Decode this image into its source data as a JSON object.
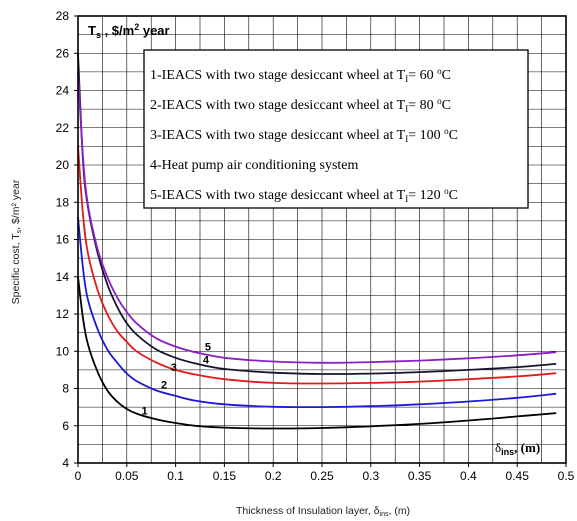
{
  "chart_data": {
    "type": "line",
    "xlabel": "Thickness of Insulation layer, δ",
    "xlabel_sub": "ins",
    "xlabel_unit": ", (m)",
    "ylabel": "Specific cost, T",
    "ylabel_sub": "s",
    "ylabel_unit": ", $/m² year",
    "corner_y_label": "T",
    "corner_y_sub": "s",
    "corner_y_unit": " , $/m",
    "corner_y_sup": "2",
    "corner_y_tail": " year",
    "corner_x_label": "δ",
    "corner_x_sub": "ins",
    "corner_x_unit": ", (m)",
    "xlim": [
      0,
      0.5
    ],
    "ylim": [
      4,
      28
    ],
    "x_ticks": [
      "0",
      "0.05",
      "0.1",
      "0.15",
      "0.2",
      "0.25",
      "0.3",
      "0.35",
      "0.4",
      "0.45",
      "0.5"
    ],
    "y_ticks": [
      "4",
      "6",
      "8",
      "10",
      "12",
      "14",
      "16",
      "18",
      "20",
      "22",
      "24",
      "26",
      "28"
    ],
    "grid": true,
    "legend_position": "top-right",
    "legend": [
      {
        "pre": "1-IEACS with two stage desiccant wheel at T",
        "sub": "I",
        "post": "= 60 ",
        "sup": "o",
        "tail": "C"
      },
      {
        "pre": "2-IEACS with two stage desiccant wheel at T",
        "sub": "I",
        "post": "= 80 ",
        "sup": "o",
        "tail": "C"
      },
      {
        "pre": "3-IEACS with two stage desiccant wheel at T",
        "sub": "I",
        "post": "= 100 ",
        "sup": "o",
        "tail": "C"
      },
      {
        "pre": "4-Heat pump air conditioning system",
        "sub": "",
        "post": "",
        "sup": "",
        "tail": ""
      },
      {
        "pre": "5-IEACS with two stage desiccant wheel at T",
        "sub": "I",
        "post": "= 120 ",
        "sup": "o",
        "tail": "C"
      }
    ],
    "series": [
      {
        "label": "1",
        "color": "#000000",
        "label_at": [
          0.065,
          6.6
        ],
        "points": [
          [
            0,
            14.0
          ],
          [
            0.005,
            11.8
          ],
          [
            0.01,
            10.4
          ],
          [
            0.02,
            8.9
          ],
          [
            0.03,
            7.9
          ],
          [
            0.04,
            7.3
          ],
          [
            0.05,
            6.9
          ],
          [
            0.06,
            6.65
          ],
          [
            0.08,
            6.35
          ],
          [
            0.1,
            6.15
          ],
          [
            0.12,
            6.0
          ],
          [
            0.15,
            5.9
          ],
          [
            0.2,
            5.85
          ],
          [
            0.25,
            5.88
          ],
          [
            0.3,
            5.97
          ],
          [
            0.35,
            6.1
          ],
          [
            0.4,
            6.28
          ],
          [
            0.45,
            6.5
          ],
          [
            0.49,
            6.68
          ]
        ]
      },
      {
        "label": "2",
        "color": "#1a1ad6",
        "label_at": [
          0.085,
          8.0
        ],
        "points": [
          [
            0,
            17.2
          ],
          [
            0.005,
            14.5
          ],
          [
            0.01,
            12.8
          ],
          [
            0.02,
            11.2
          ],
          [
            0.03,
            10.1
          ],
          [
            0.04,
            9.4
          ],
          [
            0.05,
            8.8
          ],
          [
            0.06,
            8.4
          ],
          [
            0.08,
            7.9
          ],
          [
            0.1,
            7.6
          ],
          [
            0.12,
            7.35
          ],
          [
            0.15,
            7.15
          ],
          [
            0.2,
            7.02
          ],
          [
            0.25,
            7.0
          ],
          [
            0.3,
            7.05
          ],
          [
            0.35,
            7.15
          ],
          [
            0.4,
            7.3
          ],
          [
            0.45,
            7.5
          ],
          [
            0.49,
            7.72
          ]
        ]
      },
      {
        "label": "3",
        "color": "#e21a1a",
        "label_at": [
          0.095,
          8.95
        ],
        "points": [
          [
            0,
            21.0
          ],
          [
            0.005,
            17.4
          ],
          [
            0.01,
            15.3
          ],
          [
            0.02,
            13.3
          ],
          [
            0.03,
            12.0
          ],
          [
            0.04,
            11.1
          ],
          [
            0.05,
            10.5
          ],
          [
            0.06,
            10.0
          ],
          [
            0.08,
            9.4
          ],
          [
            0.1,
            9.0
          ],
          [
            0.12,
            8.75
          ],
          [
            0.15,
            8.5
          ],
          [
            0.2,
            8.3
          ],
          [
            0.25,
            8.27
          ],
          [
            0.3,
            8.3
          ],
          [
            0.35,
            8.37
          ],
          [
            0.4,
            8.5
          ],
          [
            0.45,
            8.65
          ],
          [
            0.49,
            8.82
          ]
        ]
      },
      {
        "label": "4",
        "color": "#141432",
        "label_at": [
          0.128,
          9.35
        ],
        "points": [
          [
            0,
            26.0
          ],
          [
            0.005,
            20.3
          ],
          [
            0.01,
            17.8
          ],
          [
            0.02,
            15.3
          ],
          [
            0.03,
            13.6
          ],
          [
            0.04,
            12.4
          ],
          [
            0.05,
            11.5
          ],
          [
            0.06,
            10.9
          ],
          [
            0.08,
            10.1
          ],
          [
            0.1,
            9.65
          ],
          [
            0.12,
            9.35
          ],
          [
            0.15,
            9.05
          ],
          [
            0.2,
            8.85
          ],
          [
            0.25,
            8.78
          ],
          [
            0.3,
            8.8
          ],
          [
            0.35,
            8.88
          ],
          [
            0.4,
            9.0
          ],
          [
            0.45,
            9.15
          ],
          [
            0.49,
            9.32
          ]
        ]
      },
      {
        "label": "5",
        "color": "#8a1ec8",
        "label_at": [
          0.13,
          10.05
        ],
        "points": [
          [
            0,
            25.0
          ],
          [
            0.005,
            20.5
          ],
          [
            0.01,
            17.9
          ],
          [
            0.02,
            15.5
          ],
          [
            0.03,
            14.0
          ],
          [
            0.04,
            12.9
          ],
          [
            0.05,
            12.1
          ],
          [
            0.06,
            11.5
          ],
          [
            0.08,
            10.7
          ],
          [
            0.1,
            10.25
          ],
          [
            0.12,
            9.95
          ],
          [
            0.15,
            9.65
          ],
          [
            0.2,
            9.45
          ],
          [
            0.25,
            9.38
          ],
          [
            0.3,
            9.42
          ],
          [
            0.35,
            9.5
          ],
          [
            0.4,
            9.62
          ],
          [
            0.45,
            9.78
          ],
          [
            0.49,
            9.95
          ]
        ]
      }
    ]
  }
}
